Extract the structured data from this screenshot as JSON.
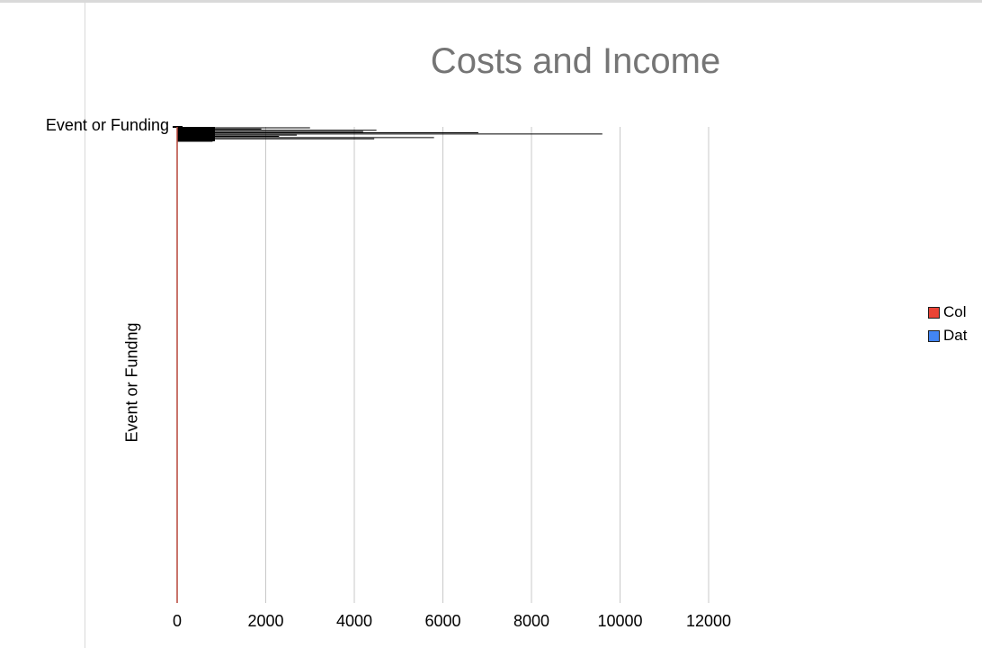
{
  "chart_data": {
    "type": "bar",
    "orientation": "horizontal",
    "title": "Costs and Income",
    "ylabel": "Event or Fundng",
    "xlabel": "",
    "categories": [
      "Event or Funding"
    ],
    "xlim": [
      0,
      12000
    ],
    "xticks": [
      "0",
      "2000",
      "4000",
      "6000",
      "8000",
      "10000",
      "12000"
    ],
    "grid": true,
    "legend_position": "right",
    "series": [
      {
        "name": "Col",
        "color": "#ea4335",
        "values": [
          0
        ]
      },
      {
        "name": "Dat",
        "color": "#4285f4",
        "values": [
          0
        ]
      }
    ],
    "leader_lines": [
      3000,
      1900,
      4500,
      4200,
      6800,
      9600,
      2700,
      2300,
      5800,
      4450,
      780,
      800
    ]
  }
}
